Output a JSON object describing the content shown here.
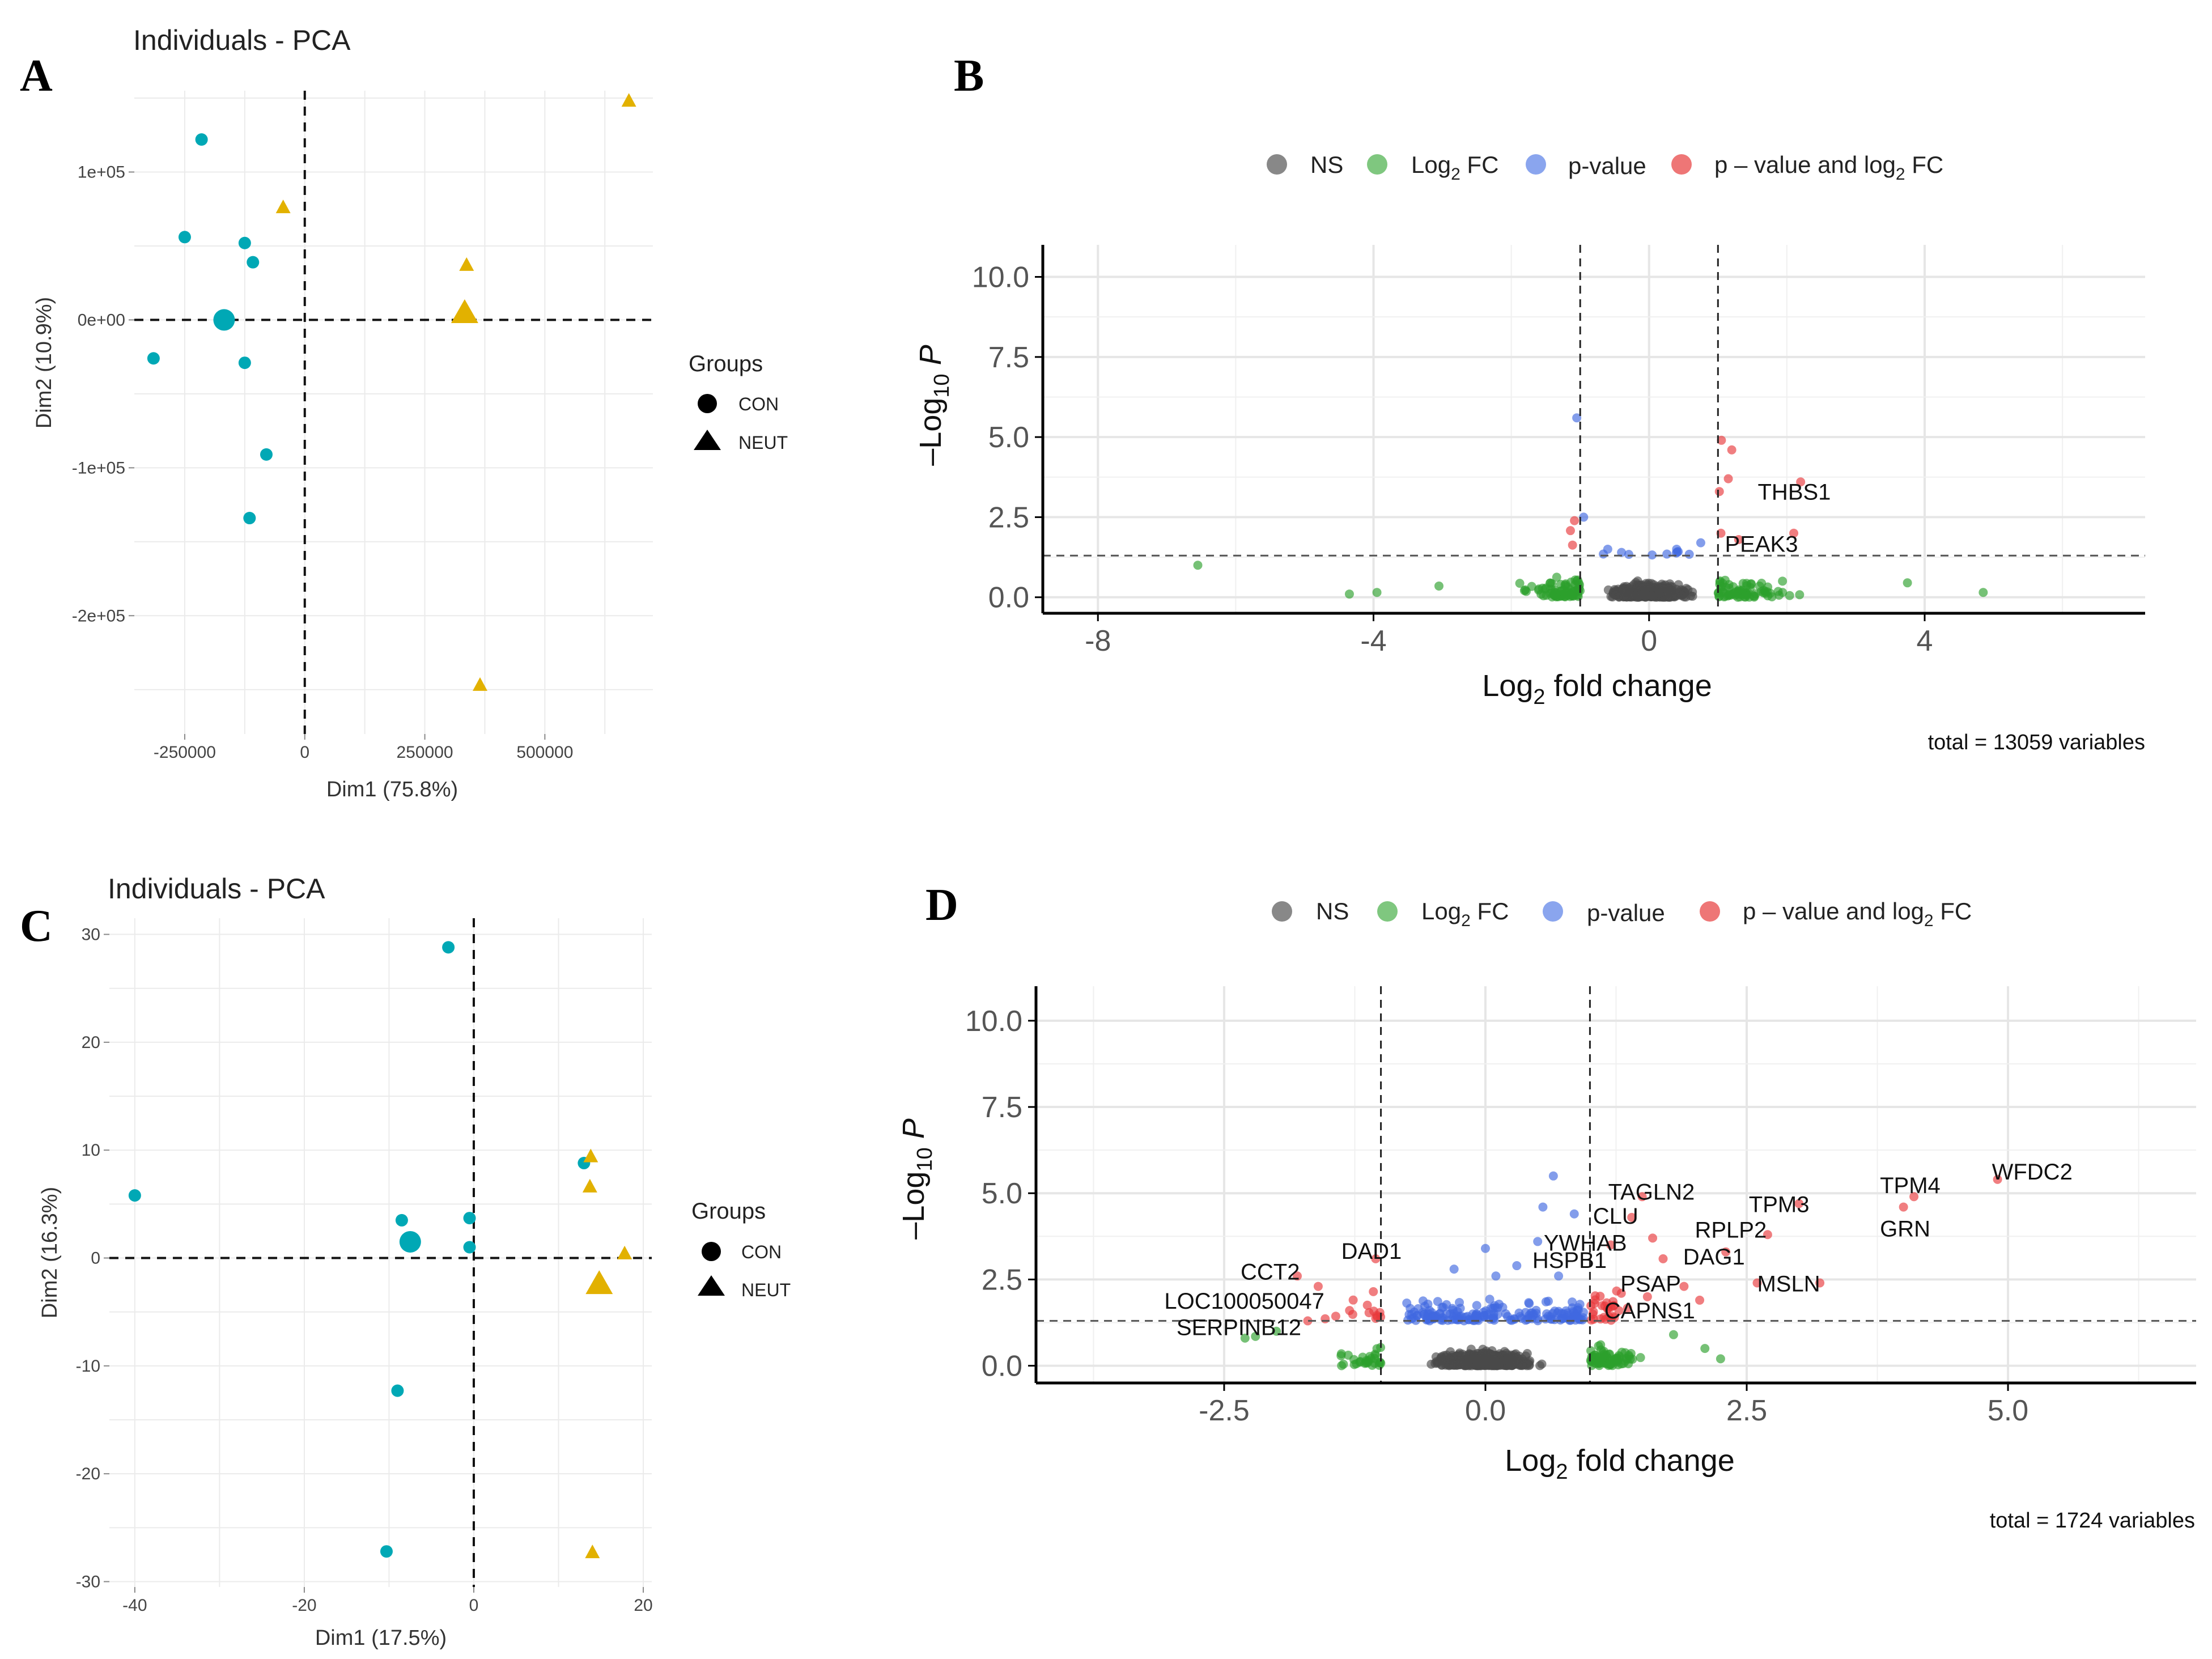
{
  "colors": {
    "con": "#00A8B5",
    "neut": "#E2B100",
    "ns": "#4a4a4a",
    "log2fc": "#2ca02c",
    "pvalue": "#4169E1",
    "both": "#E8393C"
  },
  "panels": {
    "A": {
      "letter": "A",
      "title": "Individuals - PCA",
      "xlabel": "Dim1 (75.8%)",
      "ylabel": "Dim2 (10.9%)",
      "xticks": [
        "-250000",
        "0",
        "250000",
        "500000"
      ],
      "yticks": [
        "1e+05",
        "0e+00",
        "-1e+05",
        "-2e+05"
      ],
      "legend": {
        "title": "Groups",
        "con": "CON",
        "neut": "NEUT"
      }
    },
    "B": {
      "letter": "B",
      "xlabel": "Log2 fold change",
      "ylabel": "-Log10 P",
      "xticks": [
        "-8",
        "-4",
        "0",
        "4"
      ],
      "yticks": [
        "0.0",
        "2.5",
        "5.0",
        "7.5",
        "10.0"
      ],
      "caption": "total = 13059 variables",
      "legend": {
        "ns": "NS",
        "log2fc_prefix": "Log",
        "log2fc_sub": "2",
        "log2fc_suffix": " FC",
        "pvalue": "p-value",
        "both_prefix": "p – value and log",
        "both_sub": "2",
        "both_suffix": " FC"
      }
    },
    "C": {
      "letter": "C",
      "title": "Individuals - PCA",
      "xlabel": "Dim1 (17.5%)",
      "ylabel": "Dim2 (16.3%)",
      "xticks": [
        "-40",
        "-20",
        "0",
        "20"
      ],
      "yticks": [
        "30",
        "20",
        "10",
        "0",
        "-10",
        "-20",
        "-30"
      ],
      "legend": {
        "title": "Groups",
        "con": "CON",
        "neut": "NEUT"
      }
    },
    "D": {
      "letter": "D",
      "xlabel": "Log2 fold change",
      "ylabel": "-Log10 P",
      "xticks": [
        "-2.5",
        "0.0",
        "2.5",
        "5.0"
      ],
      "yticks": [
        "0.0",
        "2.5",
        "5.0",
        "7.5",
        "10.0"
      ],
      "caption": "total = 1724 variables",
      "legend": {
        "ns": "NS",
        "log2fc_prefix": "Log",
        "log2fc_sub": "2",
        "log2fc_suffix": " FC",
        "pvalue": "p-value",
        "both_prefix": "p – value and log",
        "both_sub": "2",
        "both_suffix": " FC"
      }
    }
  },
  "chart_data": [
    {
      "id": "A",
      "type": "scatter",
      "title": "Individuals - PCA",
      "xlabel": "Dim1 (75.8%)",
      "ylabel": "Dim2 (10.9%)",
      "xlim": [
        -355000,
        725000
      ],
      "ylim": [
        -280000,
        155000
      ],
      "series": [
        {
          "name": "CON",
          "points": [
            [
              -215000,
              122000
            ],
            [
              -250000,
              56000
            ],
            [
              -125000,
              52000
            ],
            [
              -108000,
              39000
            ],
            [
              -315000,
              -26000
            ],
            [
              -125000,
              -29000
            ],
            [
              -80000,
              -91000
            ],
            [
              -115000,
              -134000
            ]
          ],
          "centroid": [
            -168000,
            0
          ]
        },
        {
          "name": "NEUT",
          "points": [
            [
              675000,
              148000
            ],
            [
              -45000,
              76000
            ],
            [
              337000,
              37000
            ],
            [
              365000,
              -247000
            ]
          ],
          "centroid": [
            333000,
            4000
          ]
        }
      ]
    },
    {
      "id": "B",
      "type": "scatter",
      "title": "",
      "xlabel": "Log2 fold change",
      "ylabel": "-Log10 P",
      "xlim": [
        -8.8,
        7.2
      ],
      "ylim": [
        -0.5,
        11.0
      ],
      "thresholds": {
        "fc": 1,
        "p": 1.3
      },
      "total": 13059,
      "labels": [
        {
          "gene": "THBS1",
          "x": 2.4,
          "y": 3.4
        },
        {
          "gene": "PEAK3",
          "x": 1.1,
          "y": 1.6
        }
      ],
      "significant": [
        [
          1.05,
          4.9
        ],
        [
          1.2,
          4.6
        ],
        [
          1.15,
          3.7
        ],
        [
          1.02,
          3.3
        ],
        [
          2.2,
          3.6
        ],
        [
          2.1,
          2.0
        ],
        [
          1.3,
          1.8
        ]
      ],
      "pvalue_only": [
        [
          -1.05,
          5.6
        ],
        [
          -0.95,
          2.5
        ],
        [
          -0.6,
          1.5
        ],
        [
          -0.4,
          1.4
        ],
        [
          0.4,
          1.5
        ],
        [
          0.75,
          1.7
        ]
      ],
      "fc_only_extremes": [
        [
          -6.55,
          1.0
        ],
        [
          -4.35,
          0.1
        ],
        [
          -3.95,
          0.15
        ],
        [
          -3.05,
          0.35
        ],
        [
          3.75,
          0.45
        ],
        [
          4.85,
          0.15
        ]
      ]
    },
    {
      "id": "C",
      "type": "scatter",
      "title": "Individuals - PCA",
      "xlabel": "Dim1 (17.5%)",
      "ylabel": "Dim2 (16.3%)",
      "xlim": [
        -43,
        21
      ],
      "ylim": [
        -30.5,
        31.5
      ],
      "series": [
        {
          "name": "CON",
          "points": [
            [
              -3,
              28.8
            ],
            [
              -40,
              5.8
            ],
            [
              -8.5,
              3.5
            ],
            [
              -0.5,
              3.7
            ],
            [
              -0.5,
              1.0
            ],
            [
              13,
              8.8
            ],
            [
              -9,
              -12.3
            ],
            [
              -10.3,
              -27.2
            ]
          ],
          "centroid": [
            -7.5,
            1.5
          ]
        },
        {
          "name": "NEUT",
          "points": [
            [
              13.8,
              9.4
            ],
            [
              13.7,
              6.6
            ],
            [
              17.8,
              0.4
            ],
            [
              14,
              -27.3
            ]
          ],
          "centroid": [
            14.8,
            -2.5
          ]
        }
      ]
    },
    {
      "id": "D",
      "type": "scatter",
      "title": "",
      "xlabel": "Log2 fold change",
      "ylabel": "-Log10 P",
      "xlim": [
        -4.3,
        6.8
      ],
      "ylim": [
        -0.5,
        11.0
      ],
      "thresholds": {
        "fc": 1,
        "p": 1.3
      },
      "total": 1724,
      "labels": [
        {
          "gene": "WFDC2",
          "x": 4.9,
          "y": 5.4
        },
        {
          "gene": "TPM4",
          "x": 4.1,
          "y": 5.0
        },
        {
          "gene": "GRN",
          "x": 4.1,
          "y": 4.4
        },
        {
          "gene": "TAGLN2",
          "x": 1.5,
          "y": 4.9
        },
        {
          "gene": "TPM3",
          "x": 2.9,
          "y": 4.7
        },
        {
          "gene": "CLU",
          "x": 1.3,
          "y": 4.2
        },
        {
          "gene": "RPLP2",
          "x": 2.6,
          "y": 3.8
        },
        {
          "gene": "YWHAB",
          "x": 1.1,
          "y": 3.5
        },
        {
          "gene": "HSPB1",
          "x": 1.1,
          "y": 3.0
        },
        {
          "gene": "DAG1",
          "x": 2.0,
          "y": 3.1
        },
        {
          "gene": "DAD1",
          "x": -1.0,
          "y": 3.1
        },
        {
          "gene": "MSLN",
          "x": 2.6,
          "y": 2.4
        },
        {
          "gene": "PSAP",
          "x": 1.4,
          "y": 2.4
        },
        {
          "gene": "CCT2",
          "x": -1.8,
          "y": 2.5
        },
        {
          "gene": "LOC100050047",
          "x": -1.5,
          "y": 1.9
        },
        {
          "gene": "CAPNS1",
          "x": 1.3,
          "y": 1.7
        },
        {
          "gene": "SERPINB12",
          "x": -1.6,
          "y": 1.3
        }
      ],
      "significant": [
        [
          4.9,
          5.4
        ],
        [
          4.1,
          4.9
        ],
        [
          4.0,
          4.6
        ],
        [
          1.5,
          4.9
        ],
        [
          3.0,
          4.7
        ],
        [
          1.4,
          4.3
        ],
        [
          1.6,
          3.7
        ],
        [
          2.7,
          3.8
        ],
        [
          1.2,
          3.5
        ],
        [
          1.7,
          3.1
        ],
        [
          2.3,
          3.3
        ],
        [
          -1.05,
          3.1
        ],
        [
          -1.8,
          2.6
        ],
        [
          -1.6,
          2.3
        ],
        [
          -1.3,
          1.6
        ],
        [
          -1.7,
          1.3
        ],
        [
          2.6,
          2.4
        ],
        [
          3.2,
          2.4
        ],
        [
          1.9,
          2.3
        ],
        [
          2.05,
          1.9
        ],
        [
          1.3,
          2.1
        ],
        [
          1.55,
          2.0
        ],
        [
          1.2,
          1.7
        ]
      ],
      "pvalue_only": [
        [
          0.65,
          5.5
        ],
        [
          0.55,
          4.6
        ],
        [
          0.85,
          4.4
        ],
        [
          0.5,
          3.6
        ],
        [
          0.0,
          3.4
        ],
        [
          0.3,
          2.9
        ],
        [
          -0.3,
          2.8
        ],
        [
          0.7,
          2.6
        ],
        [
          0.1,
          2.6
        ]
      ],
      "fc_only_extremes": [
        [
          -2.3,
          0.8
        ],
        [
          -2.2,
          0.85
        ],
        [
          1.8,
          0.9
        ],
        [
          2.1,
          0.5
        ],
        [
          2.25,
          0.2
        ],
        [
          -2.0,
          1.0
        ]
      ]
    }
  ]
}
